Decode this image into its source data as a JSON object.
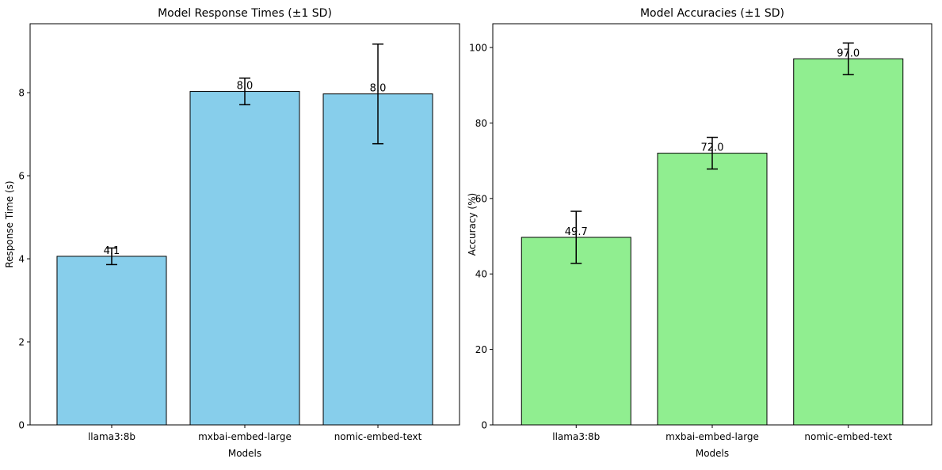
{
  "chart_data": [
    {
      "type": "bar",
      "title": "Model Response Times (±1 SD)",
      "xlabel": "Models",
      "ylabel": "Response Time (s)",
      "categories": [
        "llama3:8b",
        "mxbai-embed-large",
        "nomic-embed-text"
      ],
      "values": [
        4.06,
        8.03,
        7.97
      ],
      "errors": [
        0.2,
        0.32,
        1.2
      ],
      "data_labels": [
        "4.1",
        "8.0",
        "8.0"
      ],
      "ylim": [
        0,
        9.66
      ],
      "yticks": [
        0,
        2,
        4,
        6,
        8
      ],
      "bar_color": "#87ceeb",
      "edge_color": "#000000",
      "grid": false
    },
    {
      "type": "bar",
      "title": "Model Accuracies (±1 SD)",
      "xlabel": "Models",
      "ylabel": "Accuracy (%)",
      "categories": [
        "llama3:8b",
        "mxbai-embed-large",
        "nomic-embed-text"
      ],
      "values": [
        49.7,
        72.0,
        97.0
      ],
      "errors": [
        6.9,
        4.2,
        4.2
      ],
      "data_labels": [
        "49.7",
        "72.0",
        "97.0"
      ],
      "ylim": [
        0,
        106.3
      ],
      "yticks": [
        0,
        20,
        40,
        60,
        80,
        100
      ],
      "bar_color": "#90ee90",
      "edge_color": "#000000",
      "grid": false
    }
  ]
}
